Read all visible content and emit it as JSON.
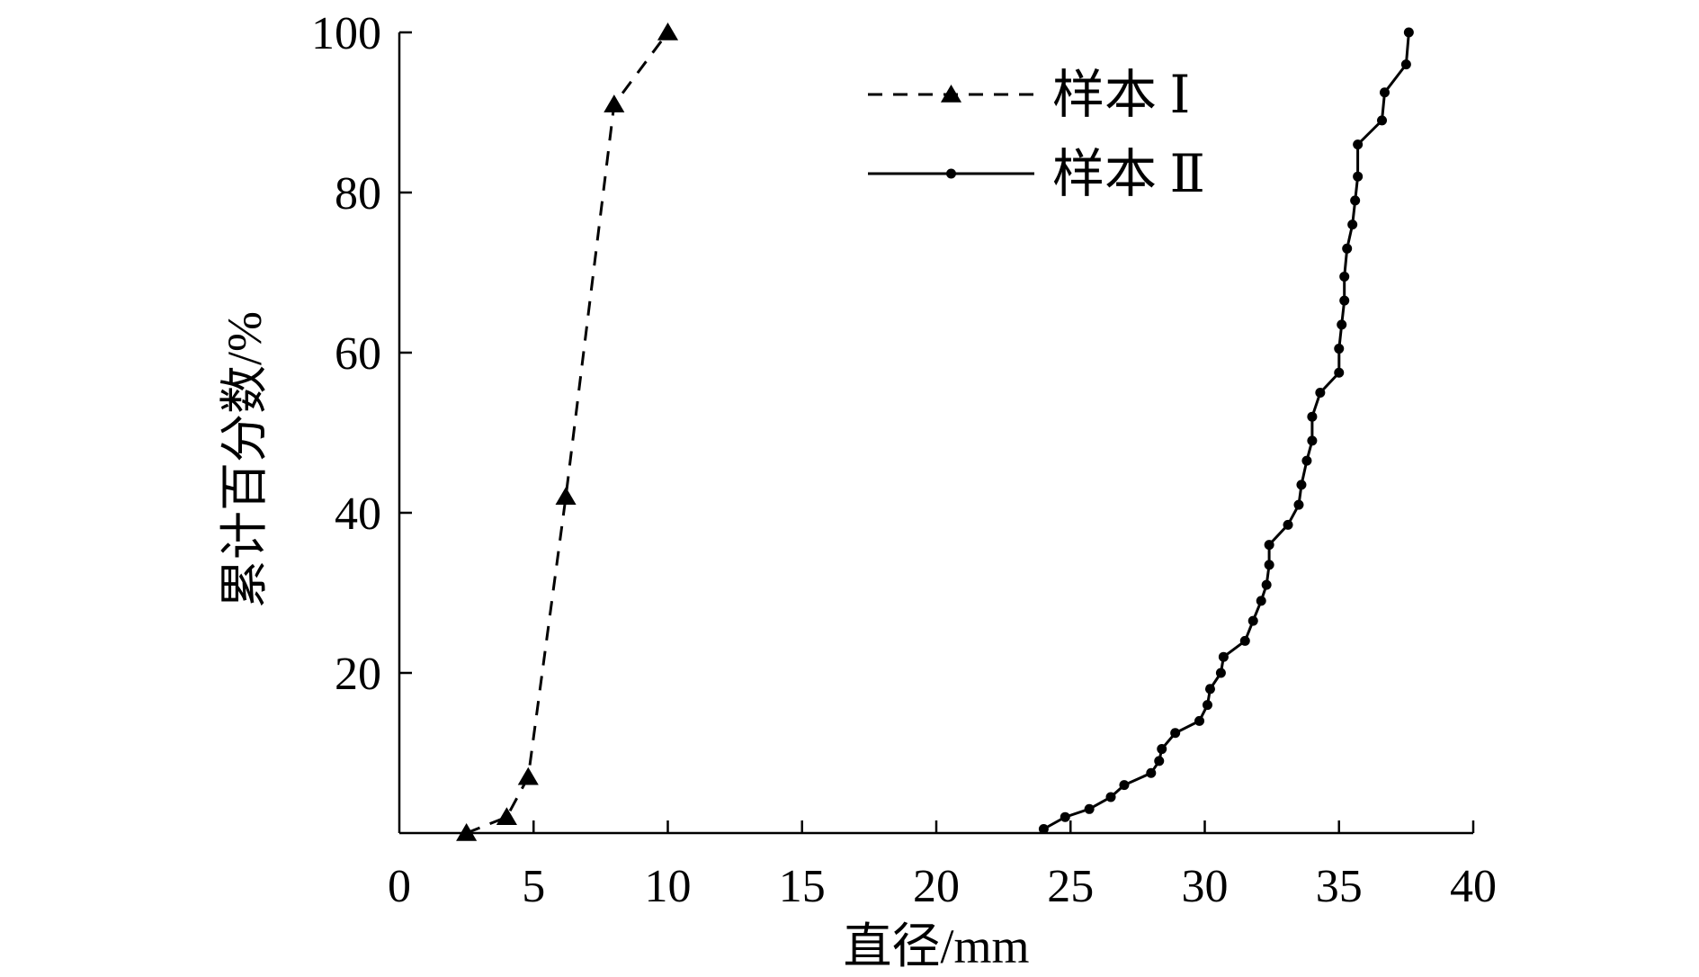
{
  "chart_data": {
    "type": "line",
    "title": "",
    "xlabel": "直径/mm",
    "ylabel": "累计百分数/%",
    "xlim": [
      0,
      40
    ],
    "ylim": [
      0,
      100
    ],
    "x_ticks": [
      "0",
      "5",
      "10",
      "15",
      "20",
      "25",
      "30",
      "35",
      "40"
    ],
    "y_ticks": [
      "20",
      "40",
      "60",
      "80",
      "100"
    ],
    "grid": false,
    "legend_position": "top-right",
    "series": [
      {
        "name": "样本 Ⅰ",
        "line_style": "dashed",
        "marker": "triangle",
        "color": "#000000",
        "points": [
          [
            2.5,
            0
          ],
          [
            4,
            2
          ],
          [
            4.8,
            7
          ],
          [
            6.2,
            42
          ],
          [
            8,
            91
          ],
          [
            10,
            100
          ]
        ]
      },
      {
        "name": "样本 Ⅱ",
        "line_style": "solid",
        "marker": "circle",
        "color": "#000000",
        "points": [
          [
            24,
            0.5
          ],
          [
            24.8,
            2
          ],
          [
            25.7,
            3
          ],
          [
            26.5,
            4.5
          ],
          [
            27,
            6
          ],
          [
            28,
            7.5
          ],
          [
            28.3,
            9
          ],
          [
            28.4,
            10.5
          ],
          [
            28.9,
            12.5
          ],
          [
            29.8,
            14
          ],
          [
            30.1,
            16
          ],
          [
            30.2,
            18
          ],
          [
            30.6,
            20
          ],
          [
            30.7,
            22
          ],
          [
            31.5,
            24
          ],
          [
            31.8,
            26.5
          ],
          [
            32.1,
            29
          ],
          [
            32.3,
            31
          ],
          [
            32.4,
            33.5
          ],
          [
            32.4,
            36
          ],
          [
            33.1,
            38.5
          ],
          [
            33.5,
            41
          ],
          [
            33.6,
            43.5
          ],
          [
            33.8,
            46.5
          ],
          [
            34,
            49
          ],
          [
            34,
            52
          ],
          [
            34.3,
            55
          ],
          [
            35,
            57.5
          ],
          [
            35,
            60.5
          ],
          [
            35.1,
            63.5
          ],
          [
            35.2,
            66.5
          ],
          [
            35.2,
            69.5
          ],
          [
            35.3,
            73
          ],
          [
            35.5,
            76
          ],
          [
            35.6,
            79
          ],
          [
            35.7,
            82
          ],
          [
            35.7,
            86
          ],
          [
            36.6,
            89
          ],
          [
            36.7,
            92.5
          ],
          [
            37.5,
            96
          ],
          [
            37.6,
            100
          ]
        ]
      }
    ]
  }
}
